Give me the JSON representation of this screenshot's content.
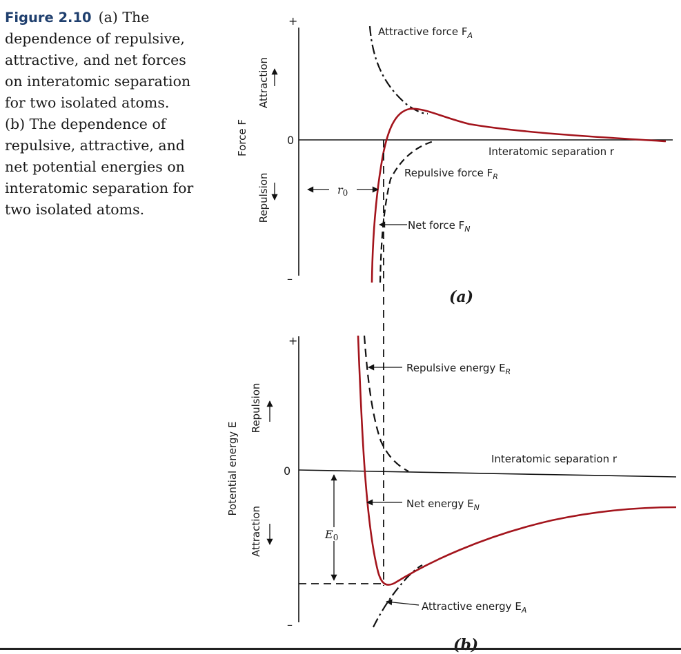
{
  "caption": {
    "figure_number": "Figure 2.10",
    "lines": [
      "(a) The",
      "dependence of repulsive,",
      "attractive, and net forces",
      "on interatomic separation",
      "for two isolated atoms.",
      "(b) The dependence of",
      "repulsive, attractive, and",
      "net potential energies on",
      "interatomic separation for",
      "two isolated atoms."
    ]
  },
  "panel_a": {
    "panel_label": "(a)",
    "y_axis_label": "Force F",
    "attraction_label": "Attraction",
    "repulsion_label": "Repulsion",
    "tick_plus": "+",
    "tick_zero": "0",
    "tick_minus": "–",
    "x_axis_label": "Interatomic separation r",
    "attractive_force_label": "Attractive force F",
    "attractive_force_sub": "A",
    "repulsive_force_label": "Repulsive force F",
    "repulsive_force_sub": "R",
    "net_force_label": "Net force F",
    "net_force_sub": "N",
    "r0_label": "r",
    "r0_sub": "0"
  },
  "panel_b": {
    "panel_label": "(b)",
    "y_axis_label": "Potential energy E",
    "repulsion_label": "Repulsion",
    "attraction_label": "Attraction",
    "tick_plus": "+",
    "tick_zero": "0",
    "tick_minus": "–",
    "x_axis_label": "Interatomic separation r",
    "repulsive_energy_label": "Repulsive energy E",
    "repulsive_energy_sub": "R",
    "net_energy_label": "Net energy E",
    "net_energy_sub": "N",
    "attractive_energy_label": "Attractive energy E",
    "attractive_energy_sub": "A",
    "e0_label": "E",
    "e0_sub": "0"
  },
  "colors": {
    "net_curve": "#a3141c",
    "component_curves": "#111111",
    "axes": "#111111",
    "figure_number": "#1f3f6e"
  }
}
